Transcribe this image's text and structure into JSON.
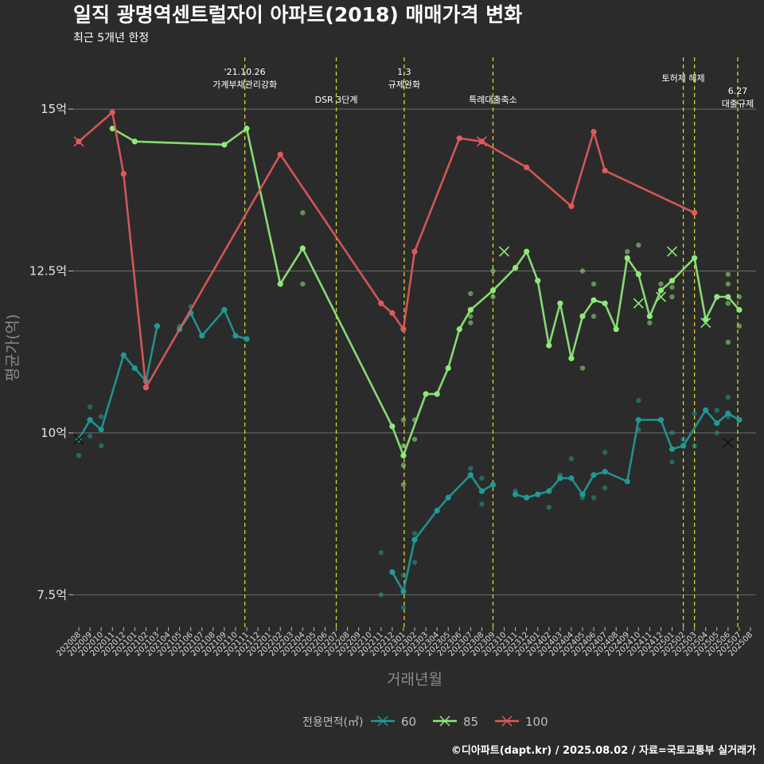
{
  "chart_data": {
    "type": "line",
    "title": "일직 광명역센트럴자이 아파트(2018) 매매가격 변화",
    "subtitle": "최근 5개년 한정",
    "xlabel": "거래년월",
    "ylabel": "평균가(억)",
    "caption": "©디아파트(dapt.kr) / 2025.08.02 / 자료=국토교통부 실거래가",
    "y_ticks": [
      "7.5억",
      "10억",
      "12.5억",
      "15억"
    ],
    "y_tick_values": [
      7.5,
      10,
      12.5,
      15
    ],
    "ylim": [
      7.0,
      15.8
    ],
    "x_start": "2020-08",
    "x_end": "2025-08",
    "x_tick_labels": [
      "202008",
      "202009",
      "202010",
      "202011",
      "202012",
      "202101",
      "202102",
      "202103",
      "202104",
      "202105",
      "202106",
      "202107",
      "202108",
      "202109",
      "202110",
      "202111",
      "202112",
      "202201",
      "202202",
      "202203",
      "202204",
      "202205",
      "202206",
      "202207",
      "202208",
      "202209",
      "202210",
      "202211",
      "202212",
      "202301",
      "202302",
      "202303",
      "202304",
      "202305",
      "202306",
      "202307",
      "202308",
      "202309",
      "202310",
      "202311",
      "202312",
      "202401",
      "202402",
      "202403",
      "202404",
      "202405",
      "202406",
      "202407",
      "202408",
      "202409",
      "202410",
      "202411",
      "202412",
      "202501",
      "202502",
      "202503",
      "202504",
      "202505",
      "202506",
      "202507",
      "202508"
    ],
    "legend": {
      "title": "전용면적(㎡)",
      "position": "bottom"
    },
    "events": [
      {
        "date": "2021-10-26",
        "lines": [
          "'21.10.26",
          "가계부채관리강화"
        ]
      },
      {
        "date": "2022-07",
        "lines": [
          "DSR 3단계"
        ]
      },
      {
        "date": "2023-01-03",
        "lines": [
          "1.3",
          "규제완화"
        ]
      },
      {
        "date": "2023-09",
        "lines": [
          "특례대출축소"
        ]
      },
      {
        "date": "2025-02",
        "lines": [
          "토허제 해제"
        ]
      },
      {
        "date": "2025-03",
        "lines": []
      },
      {
        "date": "2025-06-27",
        "lines": [
          "6.27",
          "대출규제"
        ]
      }
    ],
    "series": [
      {
        "name": "60",
        "color": "#1f9a96",
        "segments": [
          [
            [
              "2020-08",
              9.9
            ],
            [
              "2020-09",
              10.2
            ],
            [
              "2020-10",
              10.05
            ],
            [
              "2020-12",
              11.2
            ],
            [
              "2021-01",
              11.0
            ],
            [
              "2021-02",
              10.8
            ],
            [
              "2021-03",
              11.65
            ]
          ],
          [
            [
              "2021-05",
              11.6
            ],
            [
              "2021-06",
              11.85
            ],
            [
              "2021-07",
              11.5
            ],
            [
              "2021-09",
              11.9
            ],
            [
              "2021-10",
              11.5
            ],
            [
              "2021-11",
              11.45
            ]
          ],
          [
            [
              "2022-12",
              7.85
            ],
            [
              "2023-01",
              7.55
            ],
            [
              "2023-02",
              8.35
            ],
            [
              "2023-04",
              8.8
            ],
            [
              "2023-05",
              9.0
            ],
            [
              "2023-07",
              9.35
            ],
            [
              "2023-08",
              9.1
            ],
            [
              "2023-09",
              9.2
            ]
          ],
          [
            [
              "2023-11",
              9.05
            ],
            [
              "2023-12",
              9.0
            ],
            [
              "2024-01",
              9.05
            ],
            [
              "2024-02",
              9.1
            ],
            [
              "2024-03",
              9.3
            ],
            [
              "2024-04",
              9.3
            ],
            [
              "2024-05",
              9.05
            ],
            [
              "2024-06",
              9.35
            ],
            [
              "2024-07",
              9.4
            ],
            [
              "2024-09",
              9.25
            ],
            [
              "2024-10",
              10.2
            ],
            [
              "2024-12",
              10.2
            ],
            [
              "2025-01",
              9.75
            ],
            [
              "2025-02",
              9.8
            ],
            [
              "2025-04",
              10.35
            ],
            [
              "2025-05",
              10.15
            ],
            [
              "2025-06",
              10.3
            ],
            [
              "2025-07",
              10.2
            ]
          ]
        ],
        "points": [
          [
            "2020-08",
            9.65
          ],
          [
            "2020-09",
            10.4
          ],
          [
            "2020-09",
            9.95
          ],
          [
            "2020-10",
            10.25
          ],
          [
            "2020-10",
            9.8
          ],
          [
            "2021-05",
            11.65
          ],
          [
            "2021-06",
            11.95
          ],
          [
            "2022-11",
            8.15
          ],
          [
            "2022-11",
            7.5
          ],
          [
            "2023-01",
            7.3
          ],
          [
            "2023-01",
            7.8
          ],
          [
            "2023-02",
            8.0
          ],
          [
            "2023-02",
            8.45
          ],
          [
            "2023-07",
            9.45
          ],
          [
            "2023-08",
            9.3
          ],
          [
            "2023-08",
            8.9
          ],
          [
            "2023-11",
            9.1
          ],
          [
            "2024-02",
            8.85
          ],
          [
            "2024-03",
            9.35
          ],
          [
            "2024-04",
            9.6
          ],
          [
            "2024-05",
            9.0
          ],
          [
            "2024-06",
            9.0
          ],
          [
            "2024-07",
            9.7
          ],
          [
            "2024-07",
            9.15
          ],
          [
            "2024-10",
            10.5
          ],
          [
            "2024-10",
            10.05
          ],
          [
            "2025-01",
            10.0
          ],
          [
            "2025-01",
            9.55
          ],
          [
            "2025-02",
            9.9
          ],
          [
            "2025-03",
            10.3
          ],
          [
            "2025-03",
            9.8
          ],
          [
            "2025-05",
            10.35
          ],
          [
            "2025-05",
            10.0
          ],
          [
            "2025-06",
            10.55
          ],
          [
            "2025-06",
            10.25
          ]
        ],
        "cancelled": [
          [
            "2020-08",
            9.9
          ],
          [
            "2025-06",
            9.85
          ]
        ]
      },
      {
        "name": "85",
        "color": "#8fe97a",
        "segments": [
          [
            [
              "2020-11",
              14.7
            ],
            [
              "2021-01",
              14.5
            ],
            [
              "2021-09",
              14.45
            ],
            [
              "2021-11",
              14.7
            ],
            [
              "2022-02",
              12.3
            ],
            [
              "2022-04",
              12.85
            ],
            [
              "2022-12",
              10.1
            ],
            [
              "2023-01",
              9.65
            ],
            [
              "2023-03",
              10.6
            ],
            [
              "2023-04",
              10.6
            ],
            [
              "2023-05",
              11.0
            ],
            [
              "2023-06",
              11.6
            ],
            [
              "2023-07",
              11.9
            ],
            [
              "2023-09",
              12.2
            ],
            [
              "2023-11",
              12.55
            ],
            [
              "2023-12",
              12.8
            ],
            [
              "2024-01",
              12.35
            ],
            [
              "2024-02",
              11.35
            ],
            [
              "2024-03",
              12.0
            ],
            [
              "2024-04",
              11.15
            ],
            [
              "2024-05",
              11.8
            ],
            [
              "2024-06",
              12.05
            ],
            [
              "2024-07",
              12.0
            ],
            [
              "2024-08",
              11.6
            ],
            [
              "2024-09",
              12.7
            ],
            [
              "2024-10",
              12.45
            ],
            [
              "2024-11",
              11.8
            ],
            [
              "2024-12",
              12.2
            ],
            [
              "2025-01",
              12.35
            ],
            [
              "2025-03",
              12.7
            ],
            [
              "2025-04",
              11.75
            ],
            [
              "2025-05",
              12.1
            ],
            [
              "2025-06",
              12.1
            ],
            [
              "2025-07",
              11.9
            ]
          ]
        ],
        "points": [
          [
            "2022-04",
            13.4
          ],
          [
            "2022-04",
            12.3
          ],
          [
            "2023-01",
            10.2
          ],
          [
            "2023-01",
            9.8
          ],
          [
            "2023-01",
            9.5
          ],
          [
            "2023-01",
            9.2
          ],
          [
            "2023-02",
            10.2
          ],
          [
            "2023-02",
            9.9
          ],
          [
            "2023-07",
            12.15
          ],
          [
            "2023-07",
            11.8
          ],
          [
            "2023-07",
            11.7
          ],
          [
            "2023-09",
            12.5
          ],
          [
            "2023-09",
            12.1
          ],
          [
            "2024-05",
            12.5
          ],
          [
            "2024-05",
            11.0
          ],
          [
            "2024-06",
            12.3
          ],
          [
            "2024-06",
            11.8
          ],
          [
            "2024-09",
            12.8
          ],
          [
            "2024-10",
            12.9
          ],
          [
            "2024-11",
            11.7
          ],
          [
            "2024-12",
            12.3
          ],
          [
            "2025-01",
            12.25
          ],
          [
            "2025-01",
            12.1
          ],
          [
            "2025-06",
            12.45
          ],
          [
            "2025-06",
            12.3
          ],
          [
            "2025-06",
            12.0
          ],
          [
            "2025-06",
            11.4
          ],
          [
            "2025-07",
            12.1
          ],
          [
            "2025-07",
            11.65
          ]
        ],
        "cancelled": [
          [
            "2023-10",
            12.8
          ],
          [
            "2024-10",
            12.0
          ],
          [
            "2024-12",
            12.1
          ],
          [
            "2025-01",
            12.8
          ],
          [
            "2025-04",
            11.7
          ]
        ]
      },
      {
        "name": "100",
        "color": "#e05a5a",
        "segments": [
          [
            [
              "2020-08",
              14.5
            ],
            [
              "2020-11",
              14.95
            ],
            [
              "2020-12",
              14.0
            ],
            [
              "2021-02",
              10.7
            ],
            [
              "2022-02",
              14.3
            ],
            [
              "2022-11",
              12.0
            ],
            [
              "2022-12",
              11.85
            ],
            [
              "2023-01",
              11.6
            ],
            [
              "2023-02",
              12.8
            ],
            [
              "2023-06",
              14.55
            ],
            [
              "2023-08",
              14.5
            ],
            [
              "2023-12",
              14.1
            ],
            [
              "2024-04",
              13.5
            ],
            [
              "2024-06",
              14.65
            ],
            [
              "2024-07",
              14.05
            ],
            [
              "2025-03",
              13.4
            ]
          ]
        ],
        "points": [],
        "cancelled": [
          [
            "2020-08",
            14.5
          ],
          [
            "2023-08",
            14.5
          ]
        ]
      }
    ]
  }
}
